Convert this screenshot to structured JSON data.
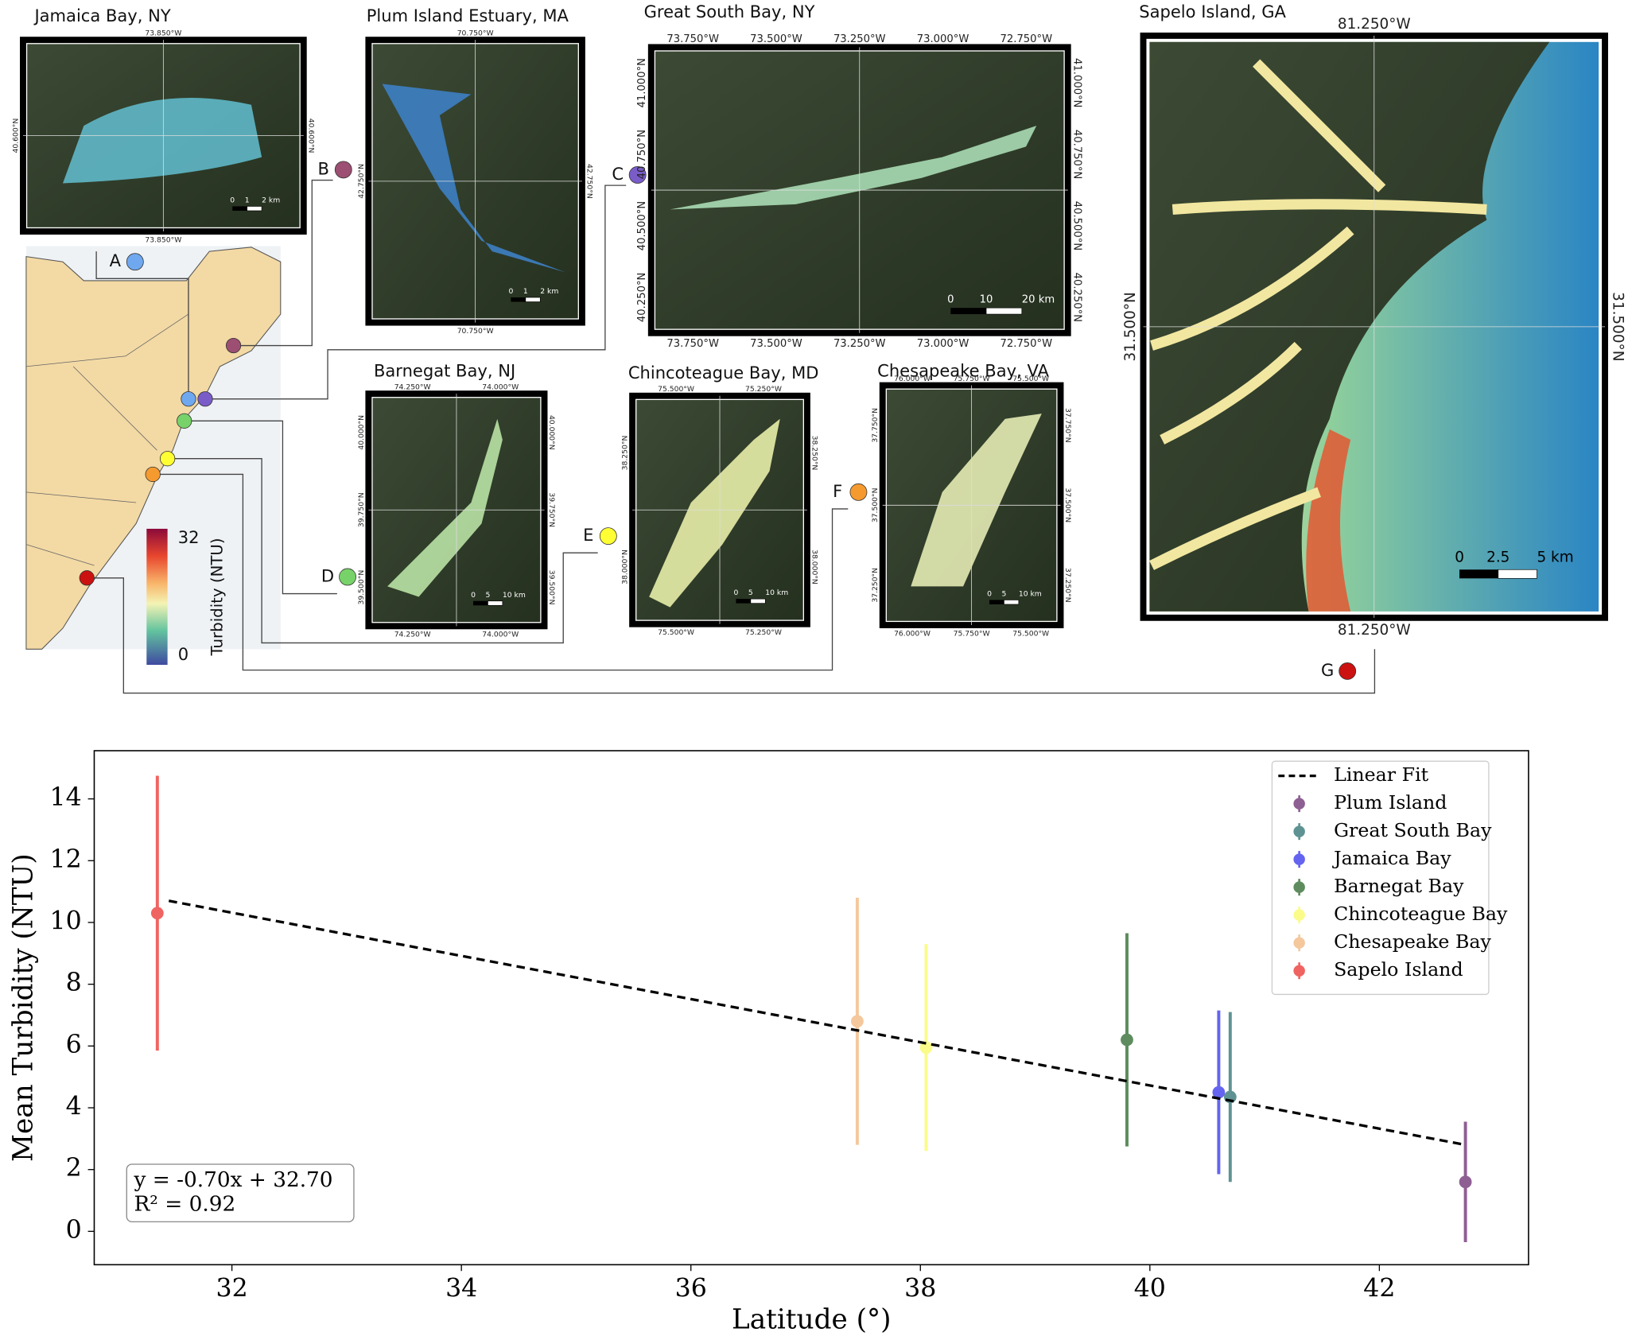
{
  "maps": [
    {
      "title": "Jamaica Bay, NY",
      "letter": "A",
      "lon": [
        "73.850°W"
      ],
      "lat": [
        "40.600°N"
      ],
      "scale": [
        "0",
        "1",
        "2 km"
      ]
    },
    {
      "title": "Plum Island Estuary, MA",
      "letter": "B",
      "lon": [
        "70.750°W"
      ],
      "lat": [
        "42.750°N"
      ],
      "scale": [
        "0",
        "1",
        "2 km"
      ]
    },
    {
      "title": "Great South Bay, NY",
      "letter": "C",
      "lon": [
        "73.750°W",
        "73.500°W",
        "73.250°W",
        "73.000°W",
        "72.750°W"
      ],
      "lat": [
        "41.000°N",
        "40.750°N",
        "40.500°N",
        "40.250°N"
      ],
      "scale": [
        "0",
        "10",
        "20 km"
      ]
    },
    {
      "title": "Barnegat Bay, NJ",
      "letter": "D",
      "lon": [
        "74.250°W",
        "74.000°W"
      ],
      "lat": [
        "40.000°N",
        "39.750°N",
        "39.500°N"
      ],
      "scale": [
        "0",
        "5",
        "10 km"
      ]
    },
    {
      "title": "Chincoteague Bay, MD",
      "letter": "E",
      "lon": [
        "75.500°W",
        "75.250°W"
      ],
      "lat": [
        "38.250°N",
        "38.000°N"
      ],
      "scale": [
        "0",
        "5",
        "10 km"
      ]
    },
    {
      "title": "Chesapeake Bay, VA",
      "letter": "F",
      "lon": [
        "76.000°W",
        "75.750°W",
        "75.500°W"
      ],
      "lat": [
        "37.750°N",
        "37.500°N",
        "37.250°N"
      ],
      "scale": [
        "0",
        "5",
        "10 km"
      ]
    },
    {
      "title": "Sapelo Island, GA",
      "letter": "G",
      "lon": [
        "81.250°W"
      ],
      "lat": [
        "31.500°N"
      ],
      "scale": [
        "0",
        "2.5",
        "5 km"
      ]
    }
  ],
  "colorbar": {
    "label": "Turbidity (NTU)",
    "ticks": [
      32,
      0
    ]
  },
  "chart_data": {
    "type": "errorbar",
    "x_label": "Latitude (°)",
    "y_label": "Mean Turbidity (NTU)",
    "xlim": [
      30.8,
      43.3
    ],
    "xticks": [
      32,
      34,
      36,
      38,
      40,
      42
    ],
    "ylim": [
      -1.08,
      15.56
    ],
    "yticks": [
      0,
      2,
      4,
      6,
      8,
      10,
      12,
      14
    ],
    "fit": {
      "name": "Linear Fit",
      "color": "#000000",
      "x": [
        31.45,
        42.75
      ],
      "values": [
        10.7,
        2.8
      ]
    },
    "annotation": [
      "y = -0.70x + 32.70",
      "R² = 0.92"
    ],
    "series": [
      {
        "name": "Plum Island",
        "color": "#8e5f93",
        "x": [
          42.75
        ],
        "values": [
          1.6
        ],
        "errors": [
          1.95
        ]
      },
      {
        "name": "Great South Bay",
        "color": "#5f9393",
        "x": [
          40.7
        ],
        "values": [
          4.35
        ],
        "errors": [
          2.75
        ]
      },
      {
        "name": "Jamaica Bay",
        "color": "#6464f0",
        "x": [
          40.6
        ],
        "values": [
          4.5
        ],
        "errors": [
          2.65
        ]
      },
      {
        "name": "Barnegat Bay",
        "color": "#5e8c5e",
        "x": [
          39.8
        ],
        "values": [
          6.2
        ],
        "errors": [
          3.45
        ]
      },
      {
        "name": "Chincoteague Bay",
        "color": "#fbfb8a",
        "x": [
          38.05
        ],
        "values": [
          5.95
        ],
        "errors": [
          3.35
        ]
      },
      {
        "name": "Chesapeake Bay",
        "color": "#f4c89c",
        "x": [
          37.45
        ],
        "values": [
          6.8
        ],
        "errors": [
          4.0
        ]
      },
      {
        "name": "Sapelo Island",
        "color": "#ef6461",
        "x": [
          31.35
        ],
        "values": [
          10.3
        ],
        "errors": [
          4.45
        ]
      }
    ],
    "legend": "upper right"
  }
}
